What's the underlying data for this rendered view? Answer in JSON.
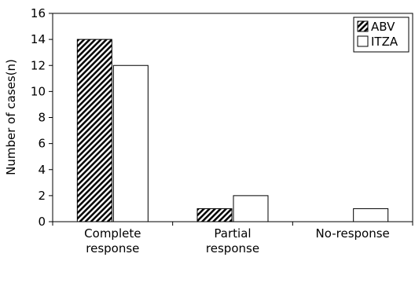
{
  "chart_data": {
    "type": "bar",
    "title": "",
    "xlabel": "",
    "ylabel": "Number of cases(n)",
    "categories": [
      [
        "Complete",
        "response"
      ],
      [
        "Partial",
        "response"
      ],
      [
        "No-response"
      ]
    ],
    "series": [
      {
        "name": "ABV",
        "values": [
          14,
          1,
          0
        ],
        "fill": "hatched"
      },
      {
        "name": "ITZA",
        "values": [
          12,
          2,
          1
        ],
        "fill": "white"
      }
    ],
    "ylim": [
      0,
      16
    ],
    "yticks": [
      0,
      2,
      4,
      6,
      8,
      10,
      12,
      14,
      16
    ],
    "grid": false,
    "legend_position": "top-right"
  }
}
